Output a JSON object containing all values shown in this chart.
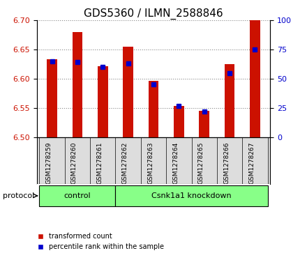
{
  "title": "GDS5360 / ILMN_2588846",
  "samples": [
    "GSM1278259",
    "GSM1278260",
    "GSM1278261",
    "GSM1278262",
    "GSM1278263",
    "GSM1278264",
    "GSM1278265",
    "GSM1278266",
    "GSM1278267"
  ],
  "transformed_count": [
    6.633,
    6.68,
    6.622,
    6.655,
    6.597,
    6.554,
    6.545,
    6.625,
    6.7
  ],
  "percentile_rank": [
    65,
    64,
    60,
    63,
    45,
    27,
    22,
    55,
    75
  ],
  "ylim_left": [
    6.5,
    6.7
  ],
  "ylim_right": [
    0,
    100
  ],
  "yticks_left": [
    6.5,
    6.55,
    6.6,
    6.65,
    6.7
  ],
  "yticks_right": [
    0,
    25,
    50,
    75,
    100
  ],
  "bar_color": "#CC1100",
  "dot_color": "#0000CC",
  "bar_width": 0.4,
  "control_count": 3,
  "protocol_label": "protocol",
  "group_labels": [
    "control",
    "Csnk1a1 knockdown"
  ],
  "group_color": "#88FF88",
  "legend_red": "transformed count",
  "legend_blue": "percentile rank within the sample",
  "title_fontsize": 11,
  "tick_fontsize": 8,
  "label_fontsize": 8,
  "grid_color": "#888888",
  "background_color": "#FFFFFF",
  "plot_bg": "#FFFFFF",
  "sample_bg": "#DDDDDD"
}
